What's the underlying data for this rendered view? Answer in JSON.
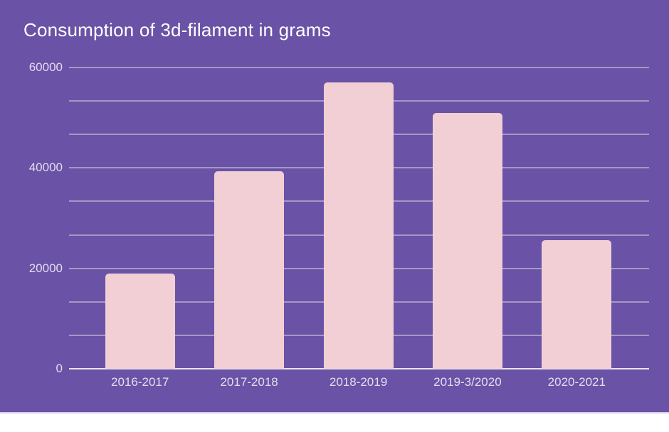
{
  "chart_data": {
    "type": "bar",
    "title": "Consumption of 3d-filament in grams",
    "categories": [
      "2016-2017",
      "2017-2018",
      "2018-2019",
      "2019-3/2020",
      "2020-2021"
    ],
    "values": [
      18900,
      39300,
      57000,
      51000,
      25600
    ],
    "xlabel": "",
    "ylabel": "",
    "ylim": [
      0,
      60000
    ],
    "y_major_ticks": [
      0,
      20000,
      40000,
      60000
    ],
    "y_minor_divisions_per_major": 3,
    "grid": true,
    "legend": false,
    "colors": {
      "background": "#6A52A6",
      "bar": "#F2CFD5",
      "gridline": "#A39AC4",
      "axis_line": "#E8E4F2",
      "tick_label": "#E3DDF0",
      "title": "#FFFFFF"
    }
  }
}
